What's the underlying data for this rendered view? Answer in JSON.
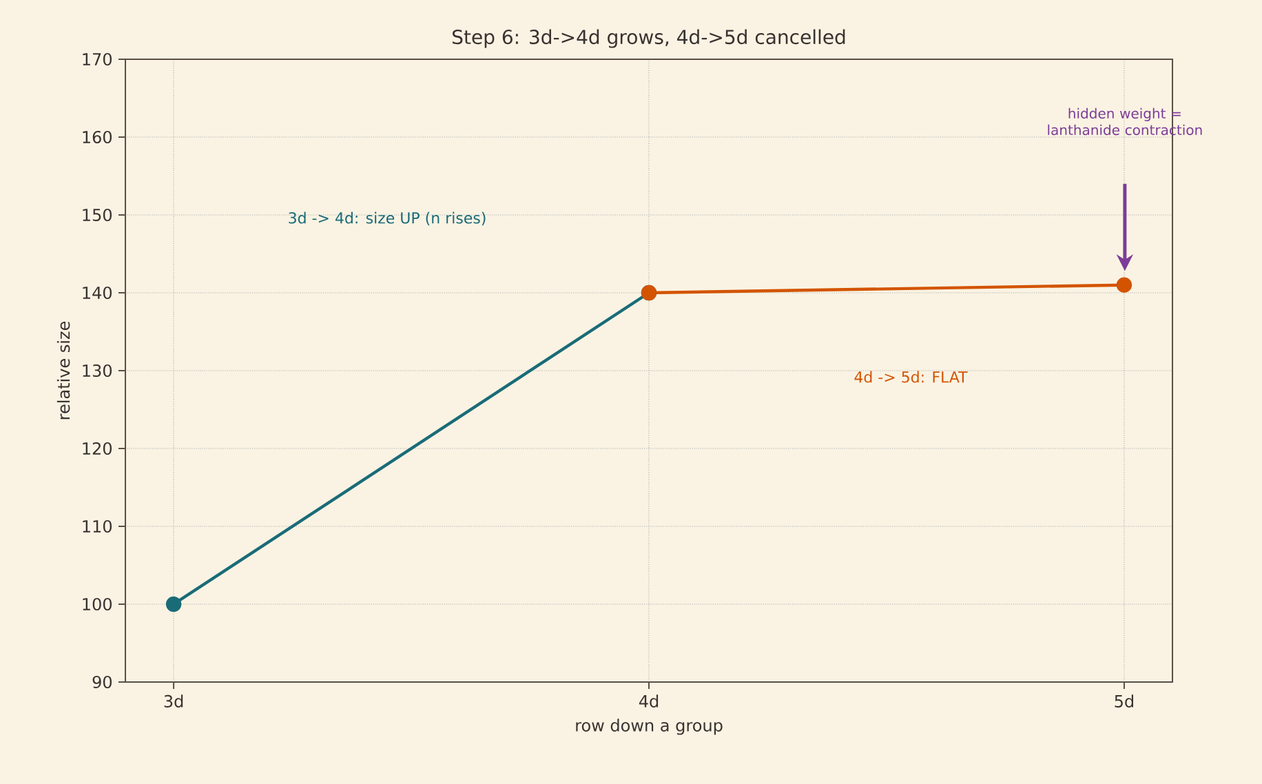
{
  "chart_data": {
    "type": "line",
    "title": "Step 6: 3d->4d grows, 4d->5d cancelled",
    "xlabel": "row down a group",
    "ylabel": "relative size",
    "categories": [
      "3d",
      "4d",
      "5d"
    ],
    "series": [
      {
        "color": "#1a6b78",
        "values": [
          100,
          140,
          null
        ]
      },
      {
        "color": "#d35400",
        "values": [
          null,
          140,
          141
        ]
      }
    ],
    "ylim": [
      90,
      170
    ],
    "yticks": [
      90,
      100,
      110,
      120,
      130,
      140,
      150,
      160,
      170
    ],
    "grid": true,
    "marker": "circle",
    "line_style": "solid",
    "annotations": [
      "3d -> 4d: size UP (n rises)",
      "4d -> 5d: FLAT",
      "hidden weight = lanthanide contraction"
    ]
  }
}
